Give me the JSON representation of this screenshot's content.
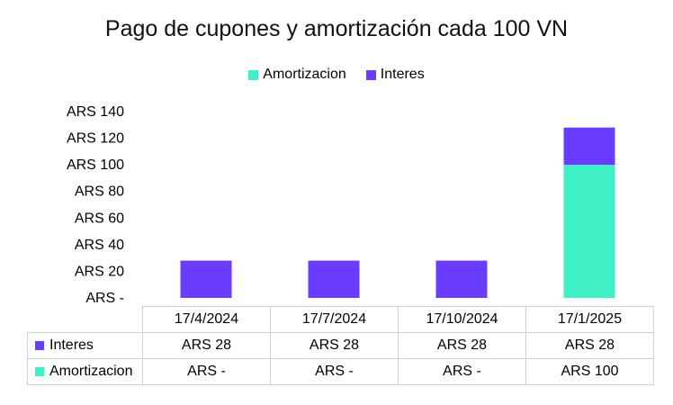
{
  "colors": {
    "amortizacion": "#3df0c6",
    "interes": "#6a3cff"
  },
  "chart_data": {
    "type": "bar",
    "stacked": true,
    "title": "Pago de cupones  y amortización cada 100 VN",
    "categories": [
      "17/4/2024",
      "17/7/2024",
      "17/10/2024",
      "17/1/2025"
    ],
    "series": [
      {
        "name": "Amortizacion",
        "values": [
          0,
          0,
          0,
          100
        ],
        "labels": [
          "ARS -",
          "ARS -",
          "ARS -",
          "ARS 100"
        ]
      },
      {
        "name": "Interes",
        "values": [
          28,
          28,
          28,
          28
        ],
        "labels": [
          "ARS 28",
          "ARS 28",
          "ARS 28",
          "ARS 28"
        ]
      }
    ],
    "ylim": [
      0,
      140
    ],
    "yticks": [
      0,
      20,
      40,
      60,
      80,
      100,
      120,
      140
    ],
    "ytick_labels": [
      "ARS -",
      "ARS 20",
      "ARS 40",
      "ARS 60",
      "ARS 80",
      "ARS 100",
      "ARS 120",
      "ARS 140"
    ],
    "legend_position": "top",
    "grid": false,
    "data_table": true
  }
}
